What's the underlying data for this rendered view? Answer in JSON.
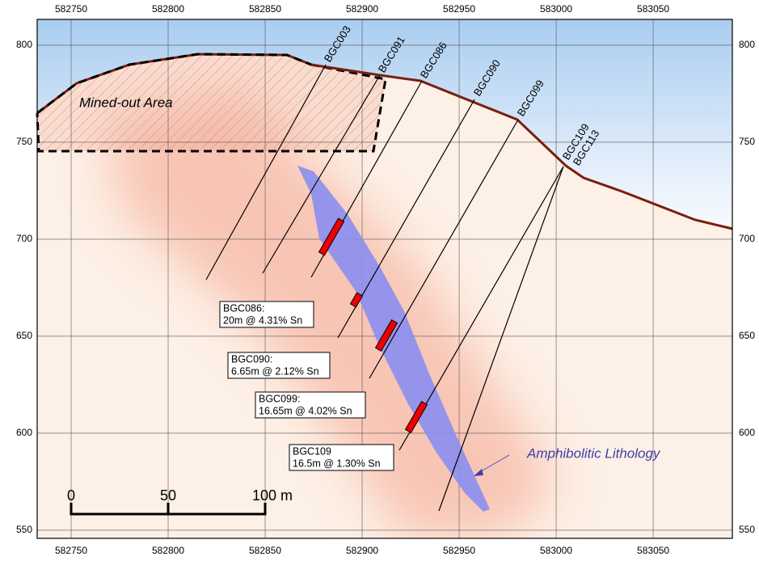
{
  "axes": {
    "xlim": [
      582732.5,
      583090.8
    ],
    "ylim": [
      545.8,
      813.3
    ],
    "xticks": [
      582750,
      582800,
      582850,
      582900,
      582950,
      583000,
      583050
    ],
    "yticks": [
      550,
      600,
      650,
      700,
      750,
      800
    ]
  },
  "drillholes": [
    "BGC003",
    "BGC091",
    "BGC086",
    "BGC090",
    "BGC099",
    "BGC109",
    "BGC113"
  ],
  "intercepts": [
    {
      "hole": "BGC086:",
      "result": "20m @ 4.31% Sn"
    },
    {
      "hole": "BGC090:",
      "result": "6.65m @ 2.12% Sn"
    },
    {
      "hole": "BGC099:",
      "result": "16.65m @ 4.02% Sn"
    },
    {
      "hole": "BGC109",
      "result": "16.5m @ 1.30% Sn"
    }
  ],
  "labels": {
    "mined_out": "Mined-out Area",
    "lithology": "Amphibolitic Lithology"
  },
  "scale_bar": [
    "0",
    "50",
    "100 m"
  ]
}
